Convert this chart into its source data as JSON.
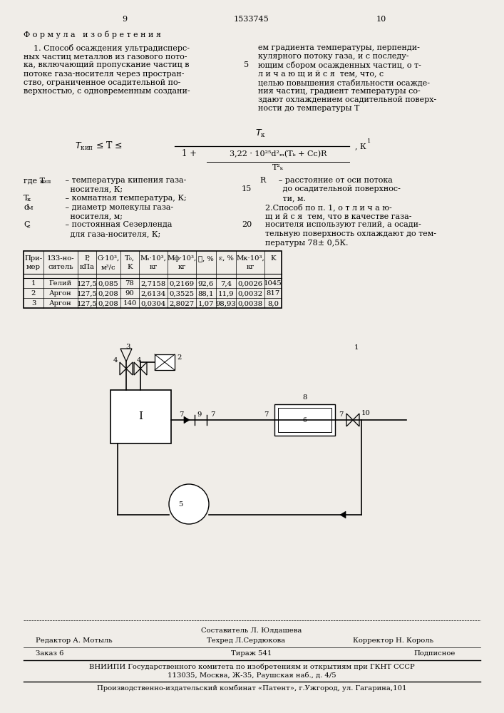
{
  "bg_color": "#f0ede8",
  "page_num_left": "9",
  "patent_num": "1533745",
  "page_num_right": "10",
  "formula_title": "Ф о р м у л а   и з о б р е т е н и я",
  "left_col": [
    "    1. Способ осаждения ультрадисперс-",
    "ных частиц металлов из газового пото-",
    "ка, включающий пропускание частиц в",
    "потоке газа-носителя через простран-",
    "ство, ограниченное осадительной по-",
    "верхностью, с одновременным создани-"
  ],
  "right_col": [
    "ем градиента температуры, перпенди-",
    "кулярного потоку газа, и с последу-",
    "ющим сбором осажденных частиц, о т-",
    "л и ч а ю щ и й с я  тем, что, с",
    "целью повышения стабильности осажде-",
    "ния частиц, градиент температуры со-",
    "здают охлаждением осадительной поверх-",
    "ности до температуры T"
  ],
  "num5": "5",
  "num15": "15",
  "num20": "20",
  "legend_left": [
    [
      "where_T_kip",
      "где Tкип  – температура кипения газа-"
    ],
    [
      "",
      "        носителя, К;"
    ],
    [
      "T_k",
      "  – комнатная температура, К;"
    ],
    [
      "d_M",
      "  – диаметр молекулы газа-"
    ],
    [
      "",
      "        носителя, м;"
    ],
    [
      "C_c",
      "  – постоянная Сезерленда"
    ],
    [
      "",
      "        для газа-носителя, К;"
    ]
  ],
  "legend_right": [
    "R     – расстояние от оси потока",
    "       до осадительной поверхнос-",
    "       ти, м.",
    "  2.Способ по п. 1, о т л и ч а ю-",
    "  щ и й с я  тем, что в качестве газа-",
    "  носителя используют гелий, а осади-",
    "  тельную поверхность охлаждают до тем-",
    "  пературы 78± 0,5К."
  ],
  "table_col_widths": [
    28,
    48,
    26,
    34,
    26,
    40,
    40,
    28,
    28,
    40,
    24
  ],
  "table_headers_line1": [
    "При-",
    "133-но-",
    "P,",
    "G·10³,",
    "T₀,",
    "Mₛ·10³,",
    "Mφ·10³,",
    "ℓ, %",
    "ε, %",
    "Mₖ·10³,",
    "K"
  ],
  "table_headers_line2": [
    "мер",
    "ситель",
    "кПа",
    "м³/с",
    "K",
    "кг",
    "кг",
    "",
    "",
    "кг",
    ""
  ],
  "table_data": [
    [
      "1",
      "Гелий",
      "127,5",
      "0,085",
      "78",
      "2,7158",
      "0,2169",
      "92,6",
      "7,4",
      "0,0026",
      "1045"
    ],
    [
      "2",
      "Аргон",
      "127,5",
      "0,208",
      "90",
      "2,6134",
      "0,3525",
      "88,1",
      "11,9",
      "0,0032",
      "817"
    ],
    [
      "3",
      "Аргон",
      "127,5",
      "0,208",
      "140",
      "0,0304",
      "2,8027",
      "1,07",
      "98,93",
      "0,0038",
      "8,0"
    ]
  ],
  "footer_composer": "Составитель Л. Юлдашева",
  "footer_editor": "Редактор А. Мотыль",
  "footer_tech": "Техред Л.Сердюкова",
  "footer_corrector": "Корректор Н. Король",
  "footer_order": "Заказ 6",
  "footer_run": "Тираж 541",
  "footer_sign": "Подписное",
  "footer_org1": "ВНИИПИ Государственного комитета по изобретениям и открытиям при ГКНТ СССР",
  "footer_org2": "113035, Москва, Ж-35, Раушская наб., д. 4/5",
  "footer_org3": "Производственно-издательский комбинат «Патент», г.Ужгород, ул. Гагарина,101"
}
